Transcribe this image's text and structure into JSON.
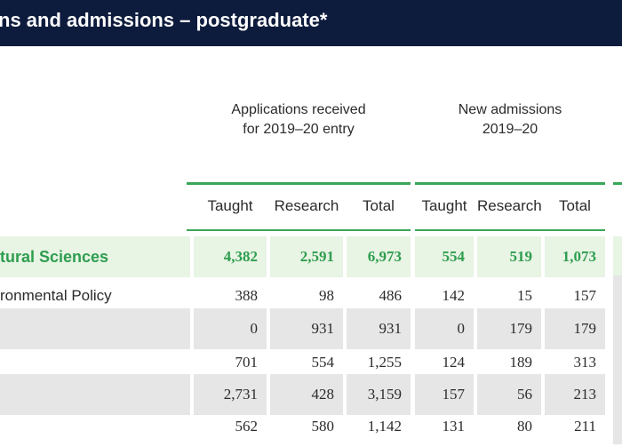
{
  "title": "ns and admissions – postgraduate*",
  "groups": [
    {
      "line1": "Applications received",
      "line2": "for  2019–20 entry"
    },
    {
      "line1": "New admissions",
      "line2": "2019–20"
    }
  ],
  "columns": [
    "Taught",
    "Research",
    "Total",
    "Taught",
    "Research",
    "Total"
  ],
  "rows": [
    {
      "label": "tural Sciences",
      "values": [
        "4,382",
        "2,591",
        "6,973",
        "554",
        "519",
        "1,073"
      ],
      "type": "faculty"
    },
    {
      "label": "ronmental Policy",
      "values": [
        "388",
        "98",
        "486",
        "142",
        "15",
        "157"
      ],
      "type": "plain"
    },
    {
      "label": "",
      "values": [
        "0",
        "931",
        "931",
        "0",
        "179",
        "179"
      ],
      "type": "shaded"
    },
    {
      "label": "",
      "values": [
        "701",
        "554",
        "1,255",
        "124",
        "189",
        "313"
      ],
      "type": "plain"
    },
    {
      "label": "",
      "values": [
        "2,731",
        "428",
        "3,159",
        "157",
        "56",
        "213"
      ],
      "type": "shaded"
    },
    {
      "label": "",
      "values": [
        "562",
        "580",
        "1,142",
        "131",
        "80",
        "211"
      ],
      "type": "plain"
    }
  ],
  "colors": {
    "header_bg": "#0d1b3d",
    "accent": "#3aa65a",
    "faculty_text": "#2e9e4f"
  }
}
